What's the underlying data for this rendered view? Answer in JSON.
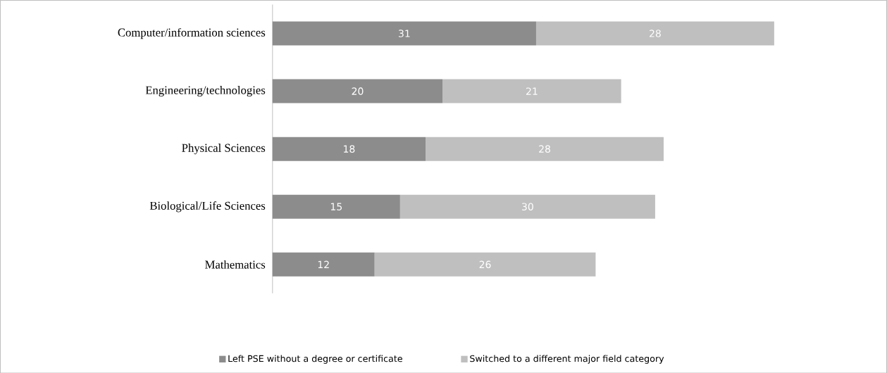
{
  "chart_data": {
    "type": "bar",
    "orientation": "horizontal",
    "stacked": true,
    "data_labels": true,
    "legend": "bottom",
    "categories": [
      "Computer/information sciences",
      "Engineering/technologies",
      "Physical Sciences",
      "Biological/Life Sciences",
      "Mathematics"
    ],
    "series": [
      {
        "name": "Left PSE without a degree or certificate",
        "color": "#8c8c8c",
        "values": [
          31,
          20,
          18,
          15,
          12
        ]
      },
      {
        "name": "Switched to a different major field category",
        "color": "#bfbfbf",
        "values": [
          28,
          21,
          28,
          30,
          26
        ]
      }
    ]
  }
}
